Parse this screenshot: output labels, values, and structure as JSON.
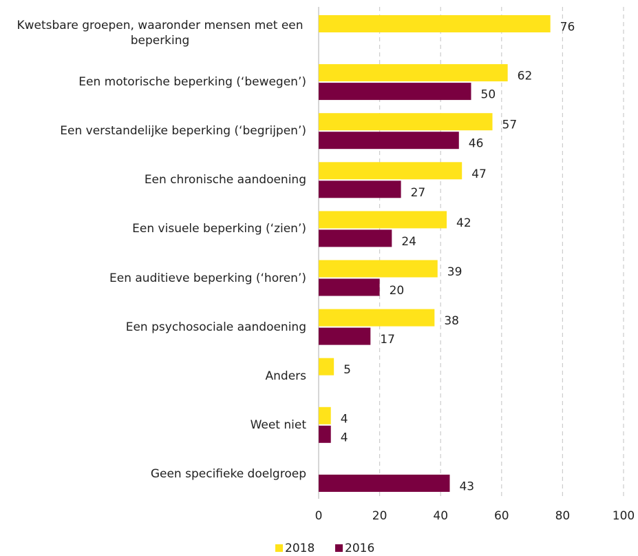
{
  "chart_data": {
    "type": "bar",
    "orientation": "horizontal",
    "categories": [
      "Kwetsbare groepen, waaronder mensen met een beperking",
      "Een motorische beperking (‘bewegen’)",
      "Een verstandelijke beperking (‘begrijpen’)",
      "Een chronische aandoening",
      "Een visuele beperking (‘zien’)",
      "Een auditieve beperking (‘horen’)",
      "Een psychosociale aandoening",
      "Anders",
      "Weet niet",
      "Geen specifieke doelgroep"
    ],
    "series": [
      {
        "name": "2018",
        "color": "#FFE31A",
        "values": [
          76,
          62,
          57,
          47,
          42,
          39,
          38,
          5,
          4,
          null
        ]
      },
      {
        "name": "2016",
        "color": "#7A0040",
        "values": [
          null,
          50,
          46,
          27,
          24,
          20,
          17,
          null,
          4,
          43
        ]
      }
    ],
    "xlim": [
      0,
      100
    ],
    "xticks": [
      0,
      20,
      40,
      60,
      80,
      100
    ],
    "grid": true,
    "legend": "bottom"
  }
}
